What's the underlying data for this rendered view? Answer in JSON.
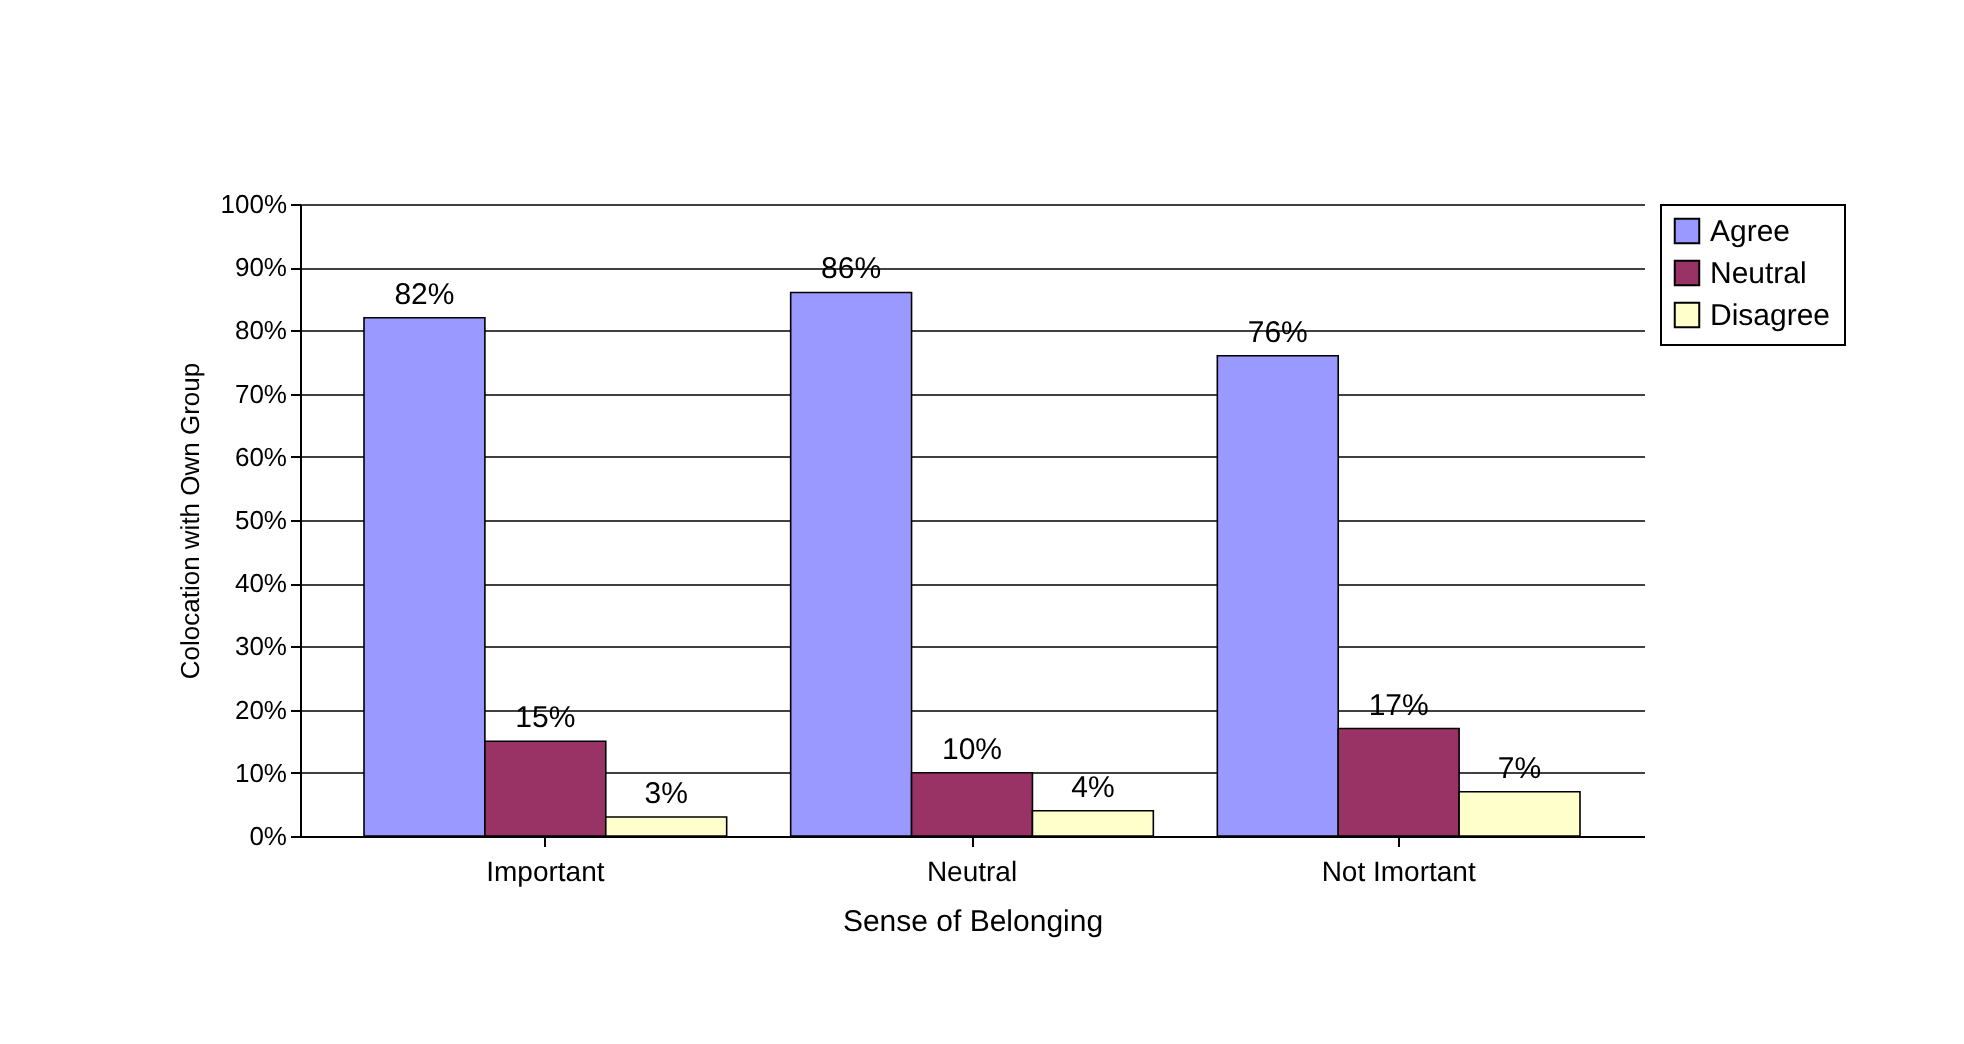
{
  "chart_data": {
    "type": "bar",
    "xlabel": "Sense of Belonging",
    "ylabel": "Colocation with Own Group",
    "categories": [
      "Important",
      "Neutral",
      "Not Imortant"
    ],
    "series": [
      {
        "name": "Agree",
        "color": "#9999ff",
        "values": [
          82,
          86,
          76
        ],
        "value_labels": [
          "82%",
          "86%",
          "76%"
        ]
      },
      {
        "name": "Neutral",
        "color": "#993366",
        "values": [
          15,
          10,
          17
        ],
        "value_labels": [
          "15%",
          "10%",
          "17%"
        ]
      },
      {
        "name": "Disagree",
        "color": "#ffffcc",
        "values": [
          3,
          4,
          7
        ],
        "value_labels": [
          "3%",
          "4%",
          "7%"
        ]
      }
    ],
    "ylim": [
      0,
      100
    ],
    "yticks": [
      {
        "value": 0,
        "label": "0%"
      },
      {
        "value": 10,
        "label": "10%"
      },
      {
        "value": 20,
        "label": "20%"
      },
      {
        "value": 30,
        "label": "30%"
      },
      {
        "value": 40,
        "label": "40%"
      },
      {
        "value": 50,
        "label": "50%"
      },
      {
        "value": 60,
        "label": "60%"
      },
      {
        "value": 70,
        "label": "70%"
      },
      {
        "value": 80,
        "label": "80%"
      },
      {
        "value": 90,
        "label": "90%"
      },
      {
        "value": 100,
        "label": "100%"
      }
    ],
    "grid": "y",
    "legend": "right"
  }
}
